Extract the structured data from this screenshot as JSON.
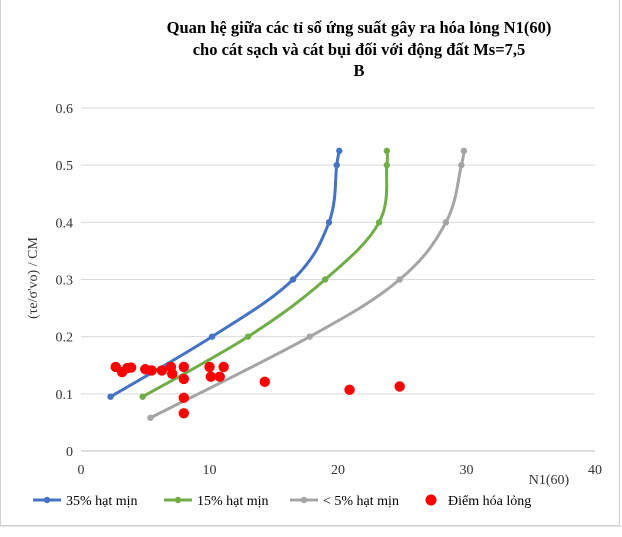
{
  "chart_data": {
    "type": "scatter",
    "title_lines": [
      "Quan hệ giữa các tỉ số ứng suất gây ra hóa lỏng N1(60)",
      "cho cát sạch và cát bụi đối với động đất Ms=7,5",
      "B"
    ],
    "xlabel": "N1(60)",
    "ylabel": "(τe/σ'vo) / CM",
    "xlim": [
      0,
      40
    ],
    "ylim": [
      0,
      0.6
    ],
    "x_ticks": [
      "0",
      "10",
      "20",
      "30",
      "40"
    ],
    "y_ticks": [
      "0",
      "0.1",
      "0.2",
      "0.3",
      "0.4",
      "0.5",
      "0.6"
    ],
    "grid": "horizontal",
    "legend_position": "bottom",
    "series": [
      {
        "name": "35% hạt mịn",
        "kind": "line",
        "color": "#4472C4",
        "points": [
          [
            2.3,
            0.095
          ],
          [
            10.2,
            0.2
          ],
          [
            16.5,
            0.3
          ],
          [
            19.3,
            0.4
          ],
          [
            19.9,
            0.5
          ],
          [
            20.1,
            0.525
          ]
        ]
      },
      {
        "name": "15% hạt mịn",
        "kind": "line",
        "color": "#70AD47",
        "points": [
          [
            4.8,
            0.095
          ],
          [
            13.0,
            0.2
          ],
          [
            19.0,
            0.3
          ],
          [
            23.2,
            0.4
          ],
          [
            23.8,
            0.5
          ],
          [
            23.8,
            0.525
          ]
        ]
      },
      {
        "name": "< 5% hạt mịn",
        "kind": "line",
        "color": "#A5A5A5",
        "points": [
          [
            5.4,
            0.058
          ],
          [
            17.8,
            0.2
          ],
          [
            24.8,
            0.3
          ],
          [
            28.4,
            0.4
          ],
          [
            29.6,
            0.5
          ],
          [
            29.8,
            0.525
          ]
        ]
      },
      {
        "name": "Điểm hóa lỏng",
        "kind": "marker",
        "color": "#FF0000",
        "points": [
          [
            2.7,
            0.147
          ],
          [
            3.2,
            0.138
          ],
          [
            3.6,
            0.145
          ],
          [
            3.9,
            0.146
          ],
          [
            5.0,
            0.143
          ],
          [
            5.5,
            0.141
          ],
          [
            6.3,
            0.141
          ],
          [
            7.0,
            0.147
          ],
          [
            7.1,
            0.135
          ],
          [
            8.0,
            0.147
          ],
          [
            8.0,
            0.126
          ],
          [
            8.0,
            0.093
          ],
          [
            8.0,
            0.066
          ],
          [
            10.0,
            0.147
          ],
          [
            10.1,
            0.13
          ],
          [
            10.8,
            0.13
          ],
          [
            11.1,
            0.147
          ],
          [
            14.3,
            0.121
          ],
          [
            20.9,
            0.107
          ],
          [
            24.8,
            0.113
          ]
        ]
      }
    ]
  }
}
